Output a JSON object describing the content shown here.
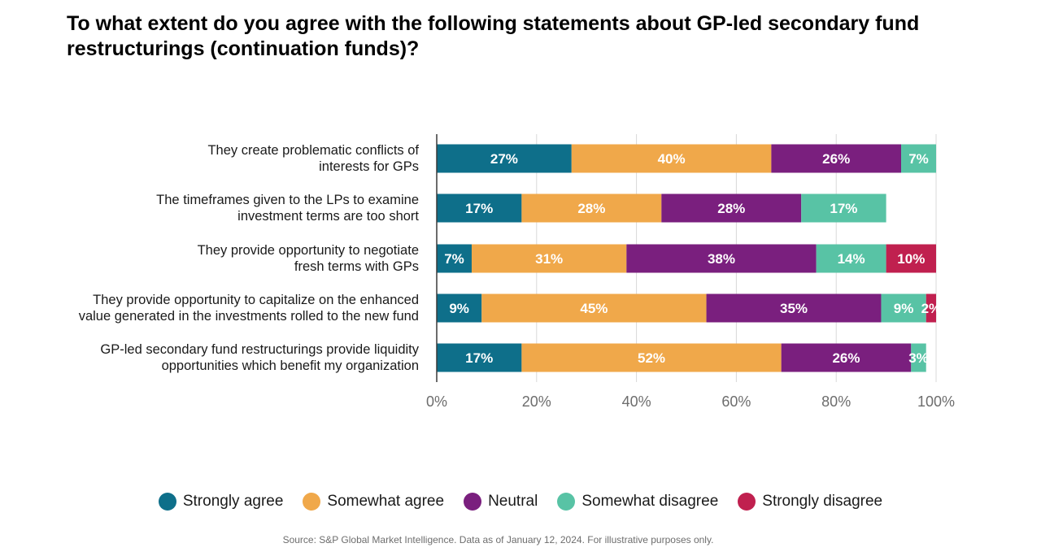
{
  "chart_data": {
    "type": "bar",
    "orientation": "horizontal",
    "stacked": true,
    "title": "To what extent do you agree with the following statements about GP-led secondary fund restructurings (continuation funds)?",
    "categories": [
      "They create problematic conflicts of interests for GPs",
      "The timeframes given to the LPs to examine investment terms are too short",
      "They provide opportunity to negotiate fresh terms with GPs",
      "They provide opportunity to capitalize on the enhanced value generated in the investments rolled to the new fund",
      "GP-led secondary fund restructurings provide liquidity opportunities which benefit my organization"
    ],
    "category_lines": [
      [
        "They create problematic conflicts of",
        "interests for GPs"
      ],
      [
        "The timeframes given to the LPs to examine",
        "investment terms are too short"
      ],
      [
        "They provide opportunity to negotiate",
        "fresh terms with GPs"
      ],
      [
        "They provide opportunity to capitalize on the enhanced",
        "value generated in the investments rolled to the new fund"
      ],
      [
        "GP-led secondary fund restructurings provide liquidity",
        "opportunities which benefit my organization"
      ]
    ],
    "series": [
      {
        "name": "Strongly agree",
        "color": "#0e6f8a",
        "values": [
          27,
          17,
          7,
          9,
          17
        ]
      },
      {
        "name": "Somewhat agree",
        "color": "#f0a84a",
        "values": [
          40,
          28,
          31,
          45,
          52
        ]
      },
      {
        "name": "Neutral",
        "color": "#7a1f7e",
        "values": [
          26,
          28,
          38,
          35,
          26
        ]
      },
      {
        "name": "Somewhat disagree",
        "color": "#58c3a5",
        "values": [
          7,
          17,
          14,
          9,
          3
        ]
      },
      {
        "name": "Strongly disagree",
        "color": "#c0204f",
        "values": [
          0,
          0,
          10,
          2,
          0
        ]
      }
    ],
    "value_suffix": "%",
    "xlim": [
      0,
      100
    ],
    "xticks": [
      0,
      20,
      40,
      60,
      80,
      100
    ],
    "xtick_labels": [
      "0%",
      "20%",
      "40%",
      "60%",
      "80%",
      "100%"
    ],
    "grid": true,
    "legend_position": "bottom"
  },
  "source_note": "Source: S&P Global Market Intelligence. Data as of January 12, 2024. For illustrative purposes only."
}
